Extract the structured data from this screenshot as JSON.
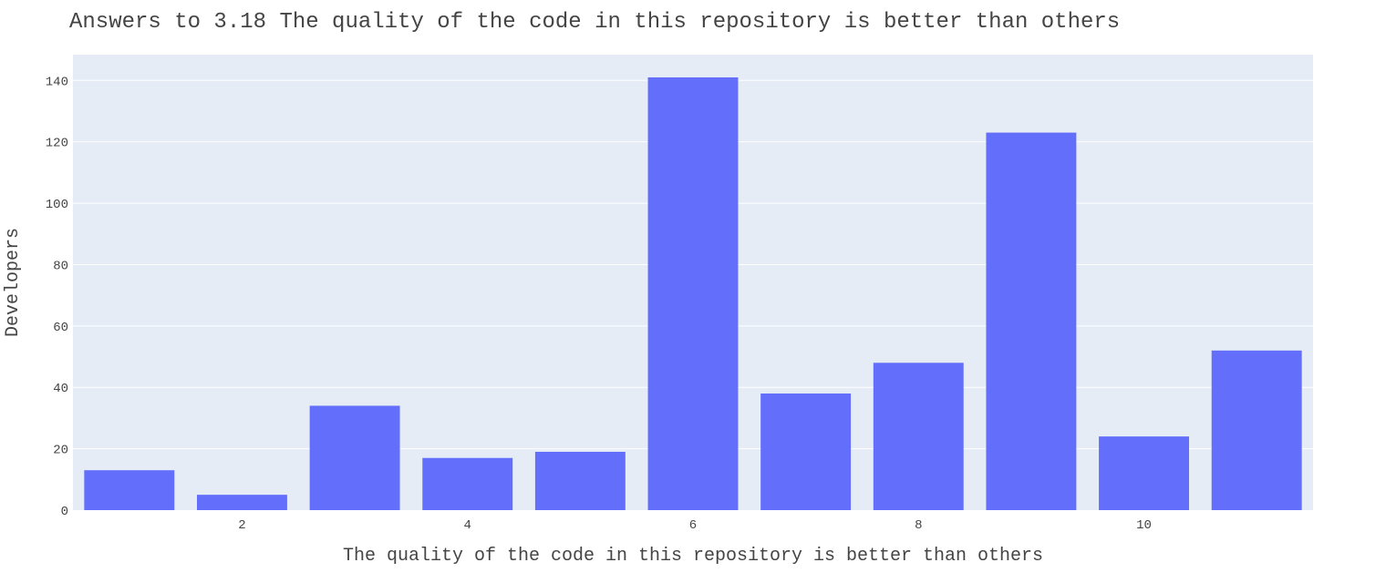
{
  "chart_data": {
    "type": "bar",
    "title": "Answers to 3.18 The quality of the code in this repository is better than others",
    "xlabel": "The quality of the code in this repository is better than others",
    "ylabel": "Developers",
    "x": [
      1,
      2,
      3,
      4,
      5,
      6,
      7,
      8,
      9,
      10,
      11
    ],
    "values": [
      13,
      5,
      34,
      17,
      19,
      141,
      38,
      48,
      123,
      24,
      52
    ],
    "xlim": [
      0.5,
      11.5
    ],
    "ylim": [
      0,
      148.4
    ],
    "x_ticks": [
      2,
      4,
      6,
      8,
      10
    ],
    "y_ticks": [
      0,
      20,
      40,
      60,
      80,
      100,
      120,
      140
    ],
    "grid": true,
    "colors": {
      "bar": "#636efa",
      "plot_bg": "#e5ecf6",
      "grid": "#ffffff",
      "text": "#444444"
    }
  }
}
